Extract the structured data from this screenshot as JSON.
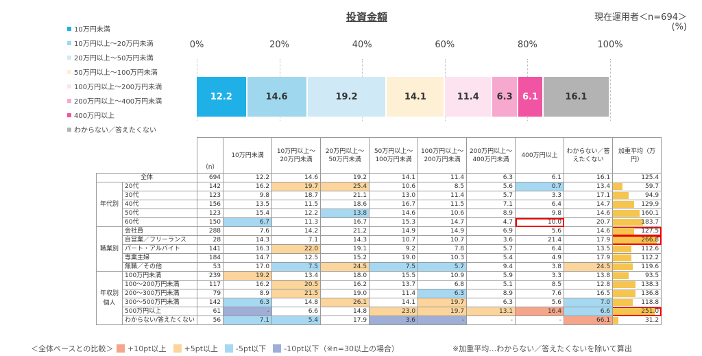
{
  "title": "投資金額",
  "respondents": "現在運用者＜n=694＞",
  "unit": "(%)",
  "colors": {
    "c1": "#1fb0e8",
    "c2": "#9fd8ee",
    "c3": "#cfeaf6",
    "c4": "#fdf0d5",
    "c5": "#fde3ef",
    "c6": "#f7a8cf",
    "c7": "#f154a2",
    "c8": "#b3b3b3",
    "plus10": "#f4a58a",
    "plus5": "#fbd59c",
    "minus5": "#a7d8f1",
    "minus10": "#9eaed6",
    "avgbar": "#f6c54f"
  },
  "legend": [
    {
      "label": "10万円未満",
      "color": "#1fb0e8"
    },
    {
      "label": "10万円以上～20万円未満",
      "color": "#9fd8ee"
    },
    {
      "label": "20万円以上～50万円未満",
      "color": "#cfeaf6"
    },
    {
      "label": "50万円以上～100万円未満",
      "color": "#fdf0d5"
    },
    {
      "label": "100万円以上～200万円未満",
      "color": "#fde3ef"
    },
    {
      "label": "200万円以上～400万円未満",
      "color": "#f7a8cf"
    },
    {
      "label": "400万円以上",
      "color": "#f154a2"
    },
    {
      "label": "わからない／答えたくない",
      "color": "#b3b3b3"
    }
  ],
  "chart_data": {
    "type": "bar",
    "stacked": true,
    "orientation": "horizontal",
    "title": "投資金額",
    "xlim": [
      0,
      100
    ],
    "x_ticks": [
      "0%",
      "20%",
      "40%",
      "60%",
      "80%",
      "100%"
    ],
    "categories": [
      "全体"
    ],
    "series": [
      {
        "name": "10万円未満",
        "values": [
          12.2
        ]
      },
      {
        "name": "10万円以上～20万円未満",
        "values": [
          14.6
        ]
      },
      {
        "name": "20万円以上～50万円未満",
        "values": [
          19.2
        ]
      },
      {
        "name": "50万円以上～100万円未満",
        "values": [
          14.1
        ]
      },
      {
        "name": "100万円以上～200万円未満",
        "values": [
          11.4
        ]
      },
      {
        "name": "200万円以上～400万円未満",
        "values": [
          6.3
        ]
      },
      {
        "name": "400万円以上",
        "values": [
          6.1
        ]
      },
      {
        "name": "わからない／答えたくない",
        "values": [
          16.1
        ]
      }
    ]
  },
  "table": {
    "n_header": "（n）",
    "headers": [
      "10万円未満",
      "10万円以上～20万円未満",
      "20万円以上～50万円未満",
      "50万円以上～100万円未満",
      "100万円以上～200万円未満",
      "200万円以上～400万円未満",
      "400万円以上",
      "わからない／答えたくない",
      "加重平均（万円）"
    ],
    "avg_max": 266.8,
    "rows": [
      {
        "group": "",
        "label": "全体",
        "n": "694",
        "v": [
          "12.2",
          "14.6",
          "19.2",
          "14.1",
          "11.4",
          "6.3",
          "6.1",
          "16.1"
        ],
        "avg": "125.4",
        "hl": [
          "",
          "",
          "",
          "",
          "",
          "",
          "",
          ""
        ],
        "red": [],
        "avg_red": false,
        "noBar": true
      },
      {
        "group": "年代別",
        "groupSpan": 5,
        "label": "20代",
        "n": "142",
        "v": [
          "16.2",
          "19.7",
          "25.4",
          "10.6",
          "8.5",
          "5.6",
          "0.7",
          "13.4"
        ],
        "avg": "59.7",
        "hl": [
          "",
          "plus5",
          "plus5",
          "",
          "",
          "",
          "minus5",
          ""
        ],
        "red": [],
        "avg_red": false
      },
      {
        "label": "30代",
        "n": "123",
        "v": [
          "9.8",
          "18.7",
          "21.1",
          "13.0",
          "11.4",
          "5.7",
          "3.3",
          "17.1"
        ],
        "avg": "94.9",
        "hl": [
          "",
          "",
          "",
          "",
          "",
          "",
          "",
          ""
        ],
        "red": [],
        "avg_red": false
      },
      {
        "label": "40代",
        "n": "156",
        "v": [
          "13.5",
          "11.5",
          "18.6",
          "16.7",
          "11.5",
          "7.1",
          "6.4",
          "14.7"
        ],
        "avg": "129.9",
        "hl": [
          "",
          "",
          "",
          "",
          "",
          "",
          "",
          ""
        ],
        "red": [],
        "avg_red": false
      },
      {
        "label": "50代",
        "n": "123",
        "v": [
          "15.4",
          "12.2",
          "13.8",
          "14.6",
          "10.6",
          "8.9",
          "9.8",
          "14.6"
        ],
        "avg": "160.1",
        "hl": [
          "",
          "",
          "minus5",
          "",
          "",
          "",
          "",
          ""
        ],
        "red": [],
        "avg_red": false
      },
      {
        "label": "60代",
        "n": "150",
        "v": [
          "6.7",
          "11.3",
          "16.7",
          "15.3",
          "14.7",
          "4.7",
          "10.0",
          "20.7"
        ],
        "avg": "183.7",
        "hl": [
          "minus5",
          "",
          "",
          "",
          "",
          "",
          "",
          ""
        ],
        "red": [
          6
        ],
        "avg_red": false
      },
      {
        "group": "職業別",
        "groupSpan": 5,
        "label": "会社員",
        "n": "288",
        "v": [
          "7.6",
          "14.2",
          "21.2",
          "14.9",
          "14.9",
          "6.9",
          "5.6",
          "14.6"
        ],
        "avg": "127.5",
        "hl": [
          "",
          "",
          "",
          "",
          "",
          "",
          "",
          ""
        ],
        "red": [],
        "avg_red": true
      },
      {
        "label": "自営業／フリーランス",
        "n": "28",
        "v": [
          "14.3",
          "7.1",
          "14.3",
          "10.7",
          "10.7",
          "3.6",
          "21.4",
          "17.9"
        ],
        "avg": "266.8",
        "hl": [
          "",
          "",
          "",
          "",
          "",
          "",
          "",
          ""
        ],
        "red": [],
        "avg_red": true
      },
      {
        "label": "パート・アルバイト",
        "n": "141",
        "v": [
          "16.3",
          "22.0",
          "19.1",
          "9.2",
          "7.8",
          "5.7",
          "6.4",
          "13.5"
        ],
        "avg": "112.6",
        "hl": [
          "",
          "plus5",
          "",
          "",
          "",
          "",
          "",
          ""
        ],
        "red": [],
        "avg_red": false
      },
      {
        "label": "専業主婦",
        "n": "184",
        "v": [
          "14.7",
          "12.5",
          "15.2",
          "19.0",
          "10.3",
          "5.4",
          "4.9",
          "17.9"
        ],
        "avg": "112.2",
        "hl": [
          "",
          "",
          "",
          "",
          "",
          "",
          "",
          ""
        ],
        "red": [],
        "avg_red": false
      },
      {
        "label": "無職／その他",
        "n": "53",
        "v": [
          "17.0",
          "7.5",
          "24.5",
          "7.5",
          "5.7",
          "9.4",
          "3.8",
          "24.5"
        ],
        "avg": "119.6",
        "hl": [
          "",
          "minus5",
          "plus5",
          "minus5",
          "minus5",
          "",
          "",
          "plus5"
        ],
        "red": [],
        "avg_red": false
      },
      {
        "group": "年収別 個人",
        "groupSpan": 6,
        "label": "100万円未満",
        "n": "239",
        "v": [
          "19.2",
          "13.4",
          "18.0",
          "15.5",
          "10.9",
          "5.9",
          "3.3",
          "13.8"
        ],
        "avg": "93.5",
        "hl": [
          "plus5",
          "",
          "",
          "",
          "",
          "",
          "",
          ""
        ],
        "red": [],
        "avg_red": false
      },
      {
        "label": "100～200万円未満",
        "n": "117",
        "v": [
          "16.2",
          "20.5",
          "16.2",
          "13.7",
          "6.8",
          "5.1",
          "8.5",
          "12.8"
        ],
        "avg": "138.3",
        "hl": [
          "",
          "plus5",
          "",
          "",
          "",
          "",
          "",
          ""
        ],
        "red": [],
        "avg_red": false
      },
      {
        "label": "200～300万円未満",
        "n": "79",
        "v": [
          "8.9",
          "21.5",
          "19.0",
          "11.4",
          "6.3",
          "8.9",
          "7.6",
          "16.5"
        ],
        "avg": "136.8",
        "hl": [
          "",
          "plus5",
          "",
          "",
          "minus5",
          "",
          "",
          ""
        ],
        "red": [],
        "avg_red": false
      },
      {
        "label": "300～500万円未満",
        "n": "142",
        "v": [
          "6.3",
          "14.8",
          "26.1",
          "14.1",
          "19.7",
          "6.3",
          "5.6",
          "7.0"
        ],
        "avg": "118.8",
        "hl": [
          "minus5",
          "",
          "plus5",
          "",
          "plus5",
          "",
          "",
          "minus5"
        ],
        "red": [],
        "avg_red": false
      },
      {
        "label": "500万円以上",
        "n": "61",
        "v": [
          "-",
          "6.6",
          "14.8",
          "23.0",
          "19.7",
          "13.1",
          "16.4",
          "6.6"
        ],
        "avg": "251.0",
        "hl": [
          "minus10",
          "",
          "",
          "plus5",
          "plus5",
          "plus5",
          "plus10",
          "minus5"
        ],
        "red": [],
        "avg_red": true
      },
      {
        "label": "わからない/答えたくない",
        "n": "56",
        "v": [
          "7.1",
          "5.4",
          "17.9",
          "3.6",
          "-",
          "-",
          "-",
          "66.1"
        ],
        "avg": "31.2",
        "hl": [
          "minus5",
          "minus5",
          "",
          "minus10",
          "minus10",
          "",
          "",
          "plus10"
        ],
        "red": [],
        "avg_red": false
      }
    ]
  },
  "footer": {
    "compare_label": "＜全体ベースとの比較＞",
    "plus10": "+10pt以上",
    "plus5": "+5pt以上",
    "minus5": "-5pt以下",
    "minus10": "-10pt以下（※n=30以上の場合）",
    "note": "※加重平均…わからない／答えたくないを除いて算出"
  }
}
